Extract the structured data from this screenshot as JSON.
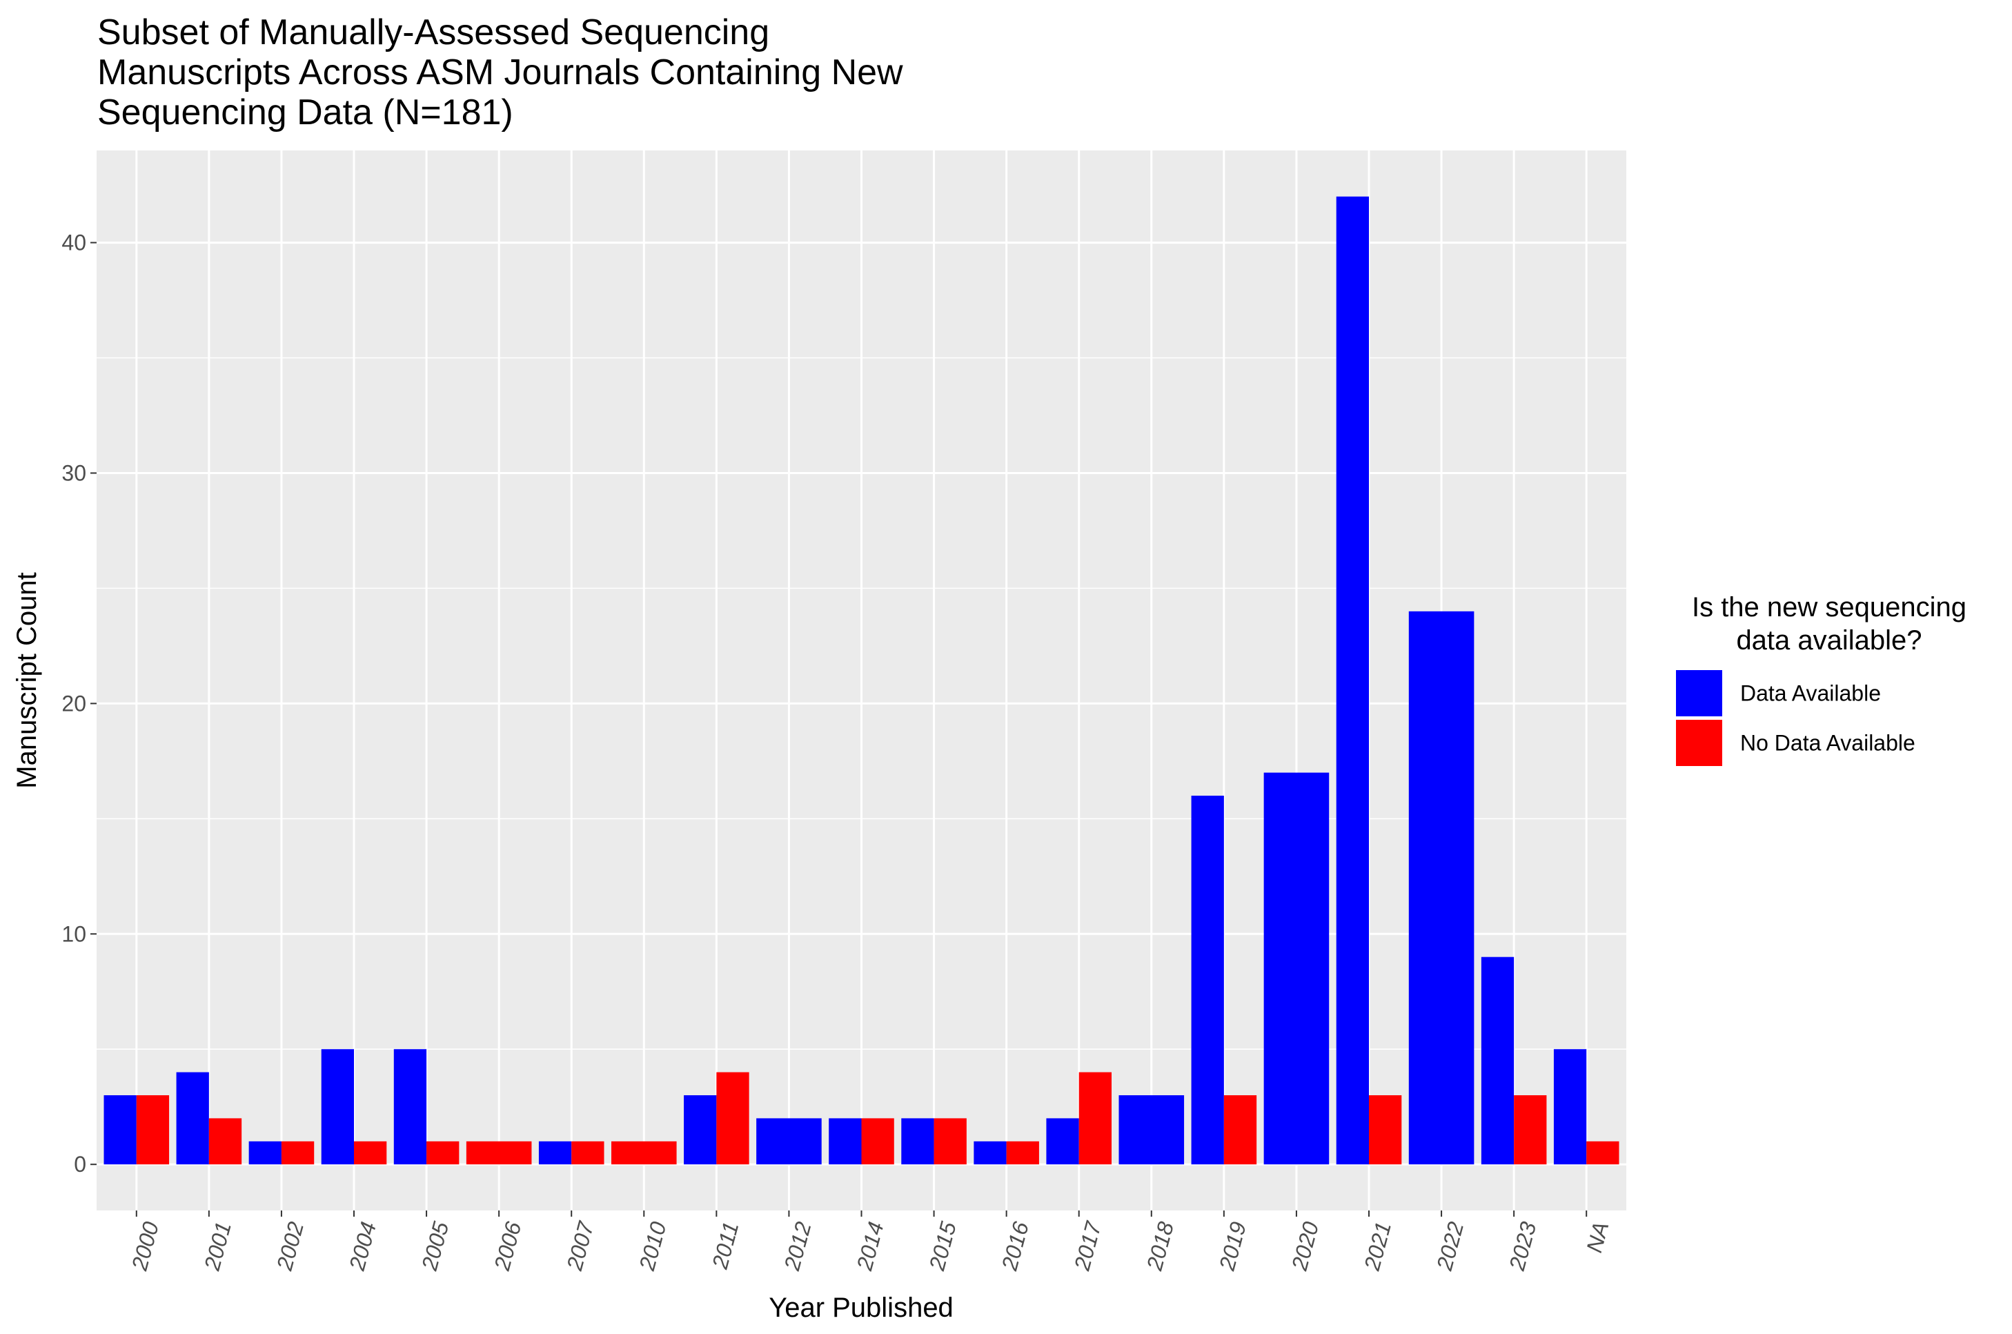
{
  "chart_data": {
    "type": "bar",
    "title_lines": [
      "Subset of Manually-Assessed Sequencing",
      "Manuscripts Across ASM Journals Containing New",
      "Sequencing Data (N=181)"
    ],
    "xlabel": "Year Published",
    "ylabel": "Manuscript Count",
    "categories": [
      "2000",
      "2001",
      "2002",
      "2004",
      "2005",
      "2006",
      "2007",
      "2010",
      "2011",
      "2012",
      "2014",
      "2015",
      "2016",
      "2017",
      "2018",
      "2019",
      "2020",
      "2021",
      "2022",
      "2023",
      "NA"
    ],
    "series": [
      {
        "name": "Data Available",
        "color": "#0000ff",
        "values": [
          3,
          4,
          1,
          5,
          5,
          null,
          1,
          null,
          3,
          2,
          2,
          2,
          1,
          2,
          3,
          16,
          17,
          42,
          24,
          9,
          5
        ]
      },
      {
        "name": "No Data Available",
        "color": "#ff0000",
        "values": [
          3,
          2,
          1,
          1,
          1,
          1,
          1,
          1,
          4,
          null,
          2,
          2,
          1,
          4,
          null,
          3,
          null,
          3,
          null,
          3,
          1
        ]
      }
    ],
    "ylim": [
      -2,
      44
    ],
    "yticks": [
      0,
      10,
      20,
      30,
      40
    ],
    "grid": true,
    "legend": {
      "title_lines": [
        "Is the new sequencing",
        "data available?"
      ],
      "position": "right"
    }
  }
}
